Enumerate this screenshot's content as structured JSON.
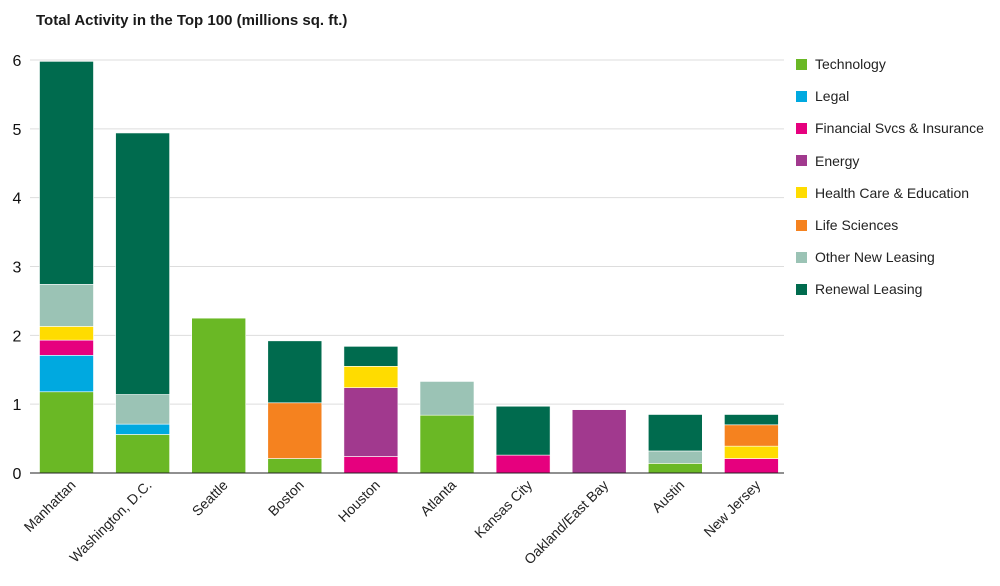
{
  "chart_data": {
    "type": "bar",
    "stacked": true,
    "title": "Total Activity in the Top 100 (millions sq. ft.)",
    "ylim": [
      0,
      6
    ],
    "yticks": [
      "0",
      "1",
      "2",
      "3",
      "4",
      "5",
      "6"
    ],
    "grid": true,
    "legend_position": "right",
    "categories": [
      "Manhattan",
      "Washington, D.C.",
      "Seattle",
      "Boston",
      "Houston",
      "Atlanta",
      "Kansas City",
      "Oakland/East Bay",
      "Austin",
      "New Jersey"
    ],
    "series": [
      {
        "name": "Technology",
        "color": "#6ab825",
        "values": [
          1.18,
          0.56,
          2.25,
          0.21,
          0,
          0.84,
          0,
          0,
          0.14,
          0
        ]
      },
      {
        "name": "Legal",
        "color": "#00a9e0",
        "values": [
          0.53,
          0.15,
          0,
          0,
          0,
          0,
          0,
          0,
          0,
          0
        ]
      },
      {
        "name": "Financial Svcs & Insurance",
        "color": "#e6007e",
        "values": [
          0.22,
          0,
          0,
          0,
          0.24,
          0,
          0.26,
          0,
          0,
          0.21
        ]
      },
      {
        "name": "Energy",
        "color": "#a1398e",
        "values": [
          0,
          0,
          0,
          0,
          1.0,
          0,
          0,
          0.92,
          0,
          0
        ]
      },
      {
        "name": "Health Care & Education",
        "color": "#ffdc00",
        "values": [
          0.2,
          0,
          0,
          0,
          0.31,
          0,
          0,
          0,
          0,
          0.18
        ]
      },
      {
        "name": "Life Sciences",
        "color": "#f5821f",
        "values": [
          0,
          0,
          0,
          0.81,
          0,
          0,
          0,
          0,
          0,
          0.31
        ]
      },
      {
        "name": "Other New Leasing",
        "color": "#9bc3b5",
        "values": [
          0.61,
          0.43,
          0,
          0,
          0,
          0.49,
          0,
          0,
          0.18,
          0
        ]
      },
      {
        "name": "Renewal Leasing",
        "color": "#006b4e",
        "values": [
          3.24,
          3.8,
          0,
          0.9,
          0.29,
          0,
          0.71,
          0,
          0.53,
          0.15
        ]
      }
    ]
  }
}
